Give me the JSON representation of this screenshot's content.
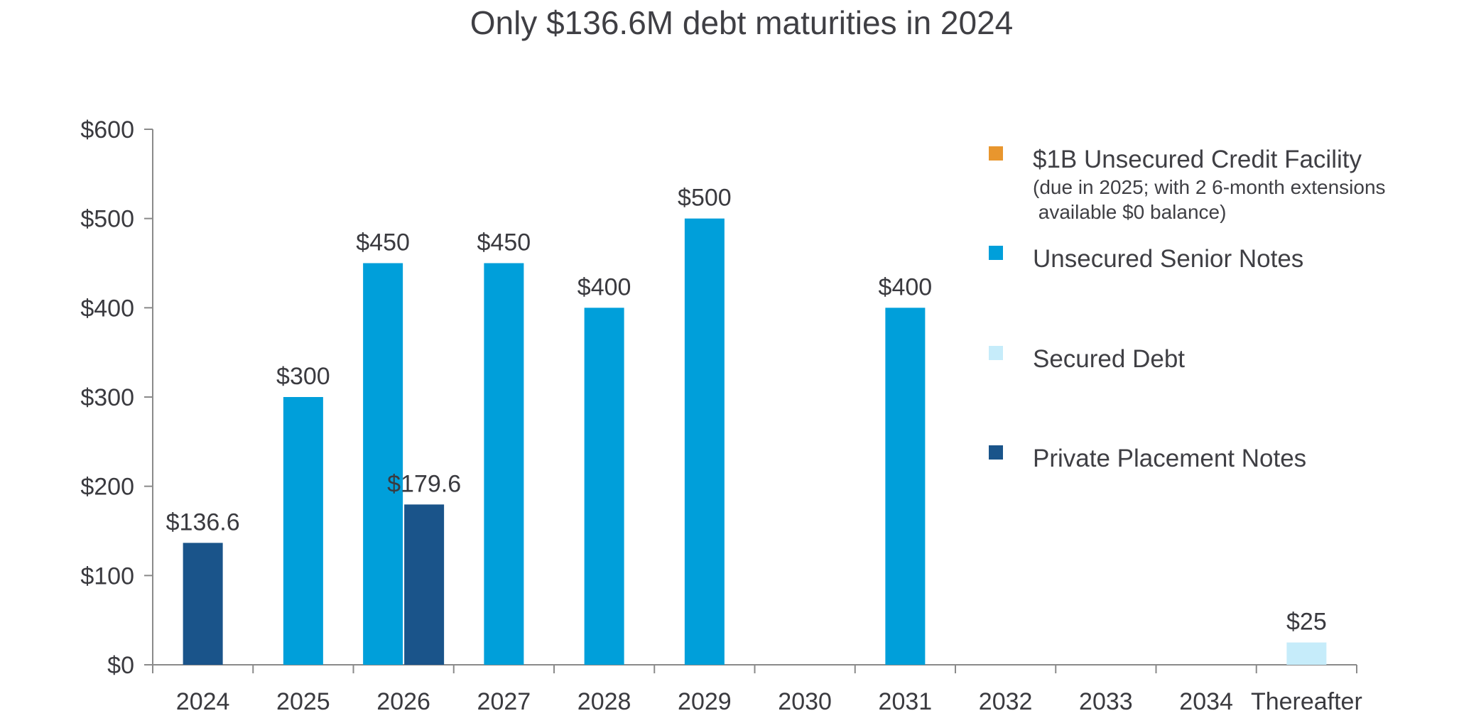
{
  "chart_data": {
    "type": "bar",
    "title": "Only $136.6M debt maturities in 2024",
    "xlabel": "",
    "ylabel": "",
    "ylim": [
      0,
      600
    ],
    "yticks": [
      0,
      100,
      200,
      300,
      400,
      500,
      600
    ],
    "ytick_labels": [
      "$0",
      "$100",
      "$200",
      "$300",
      "$400",
      "$500",
      "$600"
    ],
    "categories": [
      "2024",
      "2025",
      "2026",
      "2027",
      "2028",
      "2029",
      "2030",
      "2031",
      "2032",
      "2033",
      "2034",
      "Thereafter"
    ],
    "series": [
      {
        "name": "$1B Unsecured Credit Facility",
        "note_lines": [
          "(due in 2025; with 2 6-month extensions",
          " available $0 balance)"
        ],
        "color": "#E8962E",
        "values": [
          0,
          0,
          0,
          0,
          0,
          0,
          0,
          0,
          0,
          0,
          0,
          0
        ],
        "labels": [
          null,
          null,
          null,
          null,
          null,
          null,
          null,
          null,
          null,
          null,
          null,
          null
        ]
      },
      {
        "name": "Unsecured Senior Notes",
        "color": "#009FDA",
        "values": [
          0,
          300,
          450,
          450,
          400,
          500,
          0,
          400,
          0,
          0,
          0,
          0
        ],
        "labels": [
          null,
          "$300",
          "$450",
          "$450",
          "$400",
          "$500",
          null,
          "$400",
          null,
          null,
          null,
          null
        ]
      },
      {
        "name": "Secured Debt",
        "color": "#C6ECFA",
        "values": [
          0,
          0,
          0,
          0,
          0,
          0,
          0,
          0,
          0,
          0,
          0,
          25
        ],
        "labels": [
          null,
          null,
          null,
          null,
          null,
          null,
          null,
          null,
          null,
          null,
          null,
          "$25"
        ]
      },
      {
        "name": "Private Placement Notes",
        "color": "#1A548A",
        "values": [
          136.6,
          0,
          179.6,
          0,
          0,
          0,
          0,
          0,
          0,
          0,
          0,
          0
        ],
        "labels": [
          "$136.6",
          null,
          "$179.6",
          null,
          null,
          null,
          null,
          null,
          null,
          null,
          null,
          null
        ]
      }
    ],
    "legend_placement": "top-right",
    "grid": false
  }
}
